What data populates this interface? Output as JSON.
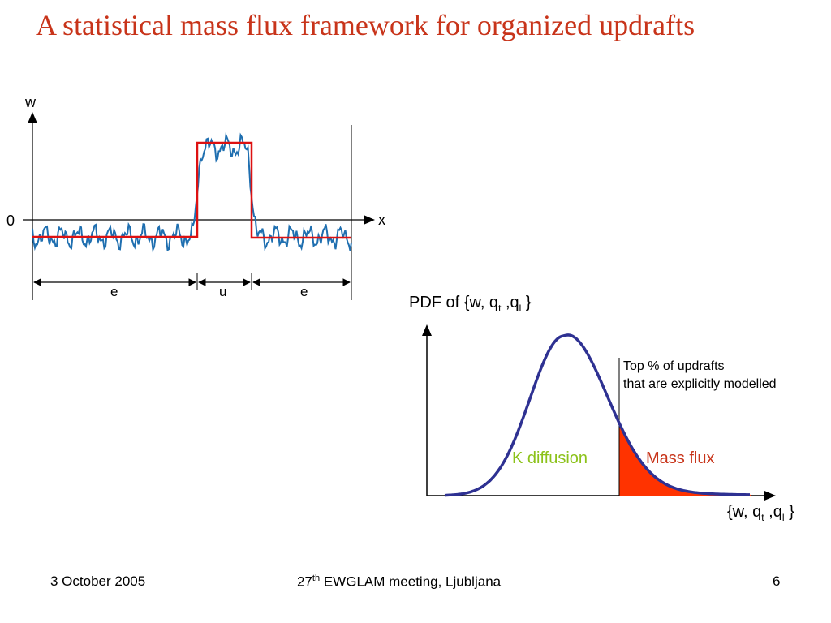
{
  "slide": {
    "title": "A statistical mass flux framework for organized updrafts",
    "footer": {
      "date": "3 October 2005",
      "meeting_sup": "th",
      "meeting_num": "27",
      "meeting_text": " EWGLAM meeting, Ljubljana",
      "page": "6"
    }
  },
  "left_diagram": {
    "y_axis_label": "w",
    "x_axis_label": "x",
    "zero_label": "0",
    "segments": [
      "e",
      "u",
      "e"
    ],
    "colors": {
      "signal": "#1f6fb0",
      "step": "#dd1111"
    }
  },
  "right_diagram": {
    "pdf_prefix": "PDF of {w, q",
    "pdf_sub1": "t",
    "pdf_mid": " ,q",
    "pdf_sub2": "l",
    "pdf_suffix": " }",
    "x_prefix": "{w, q",
    "x_sub1": "t",
    "x_mid": " ,q",
    "x_sub2": "l",
    "x_suffix": " }",
    "note_line1": "Top % of updrafts",
    "note_line2": "that are explicitly modelled",
    "k_diffusion_label": "K diffusion",
    "mass_flux_label": "Mass flux",
    "colors": {
      "curve": "#2e3192",
      "fill": "#ff3300",
      "k_diffusion": "#8cc21a",
      "mass_flux": "#c8341a"
    }
  }
}
